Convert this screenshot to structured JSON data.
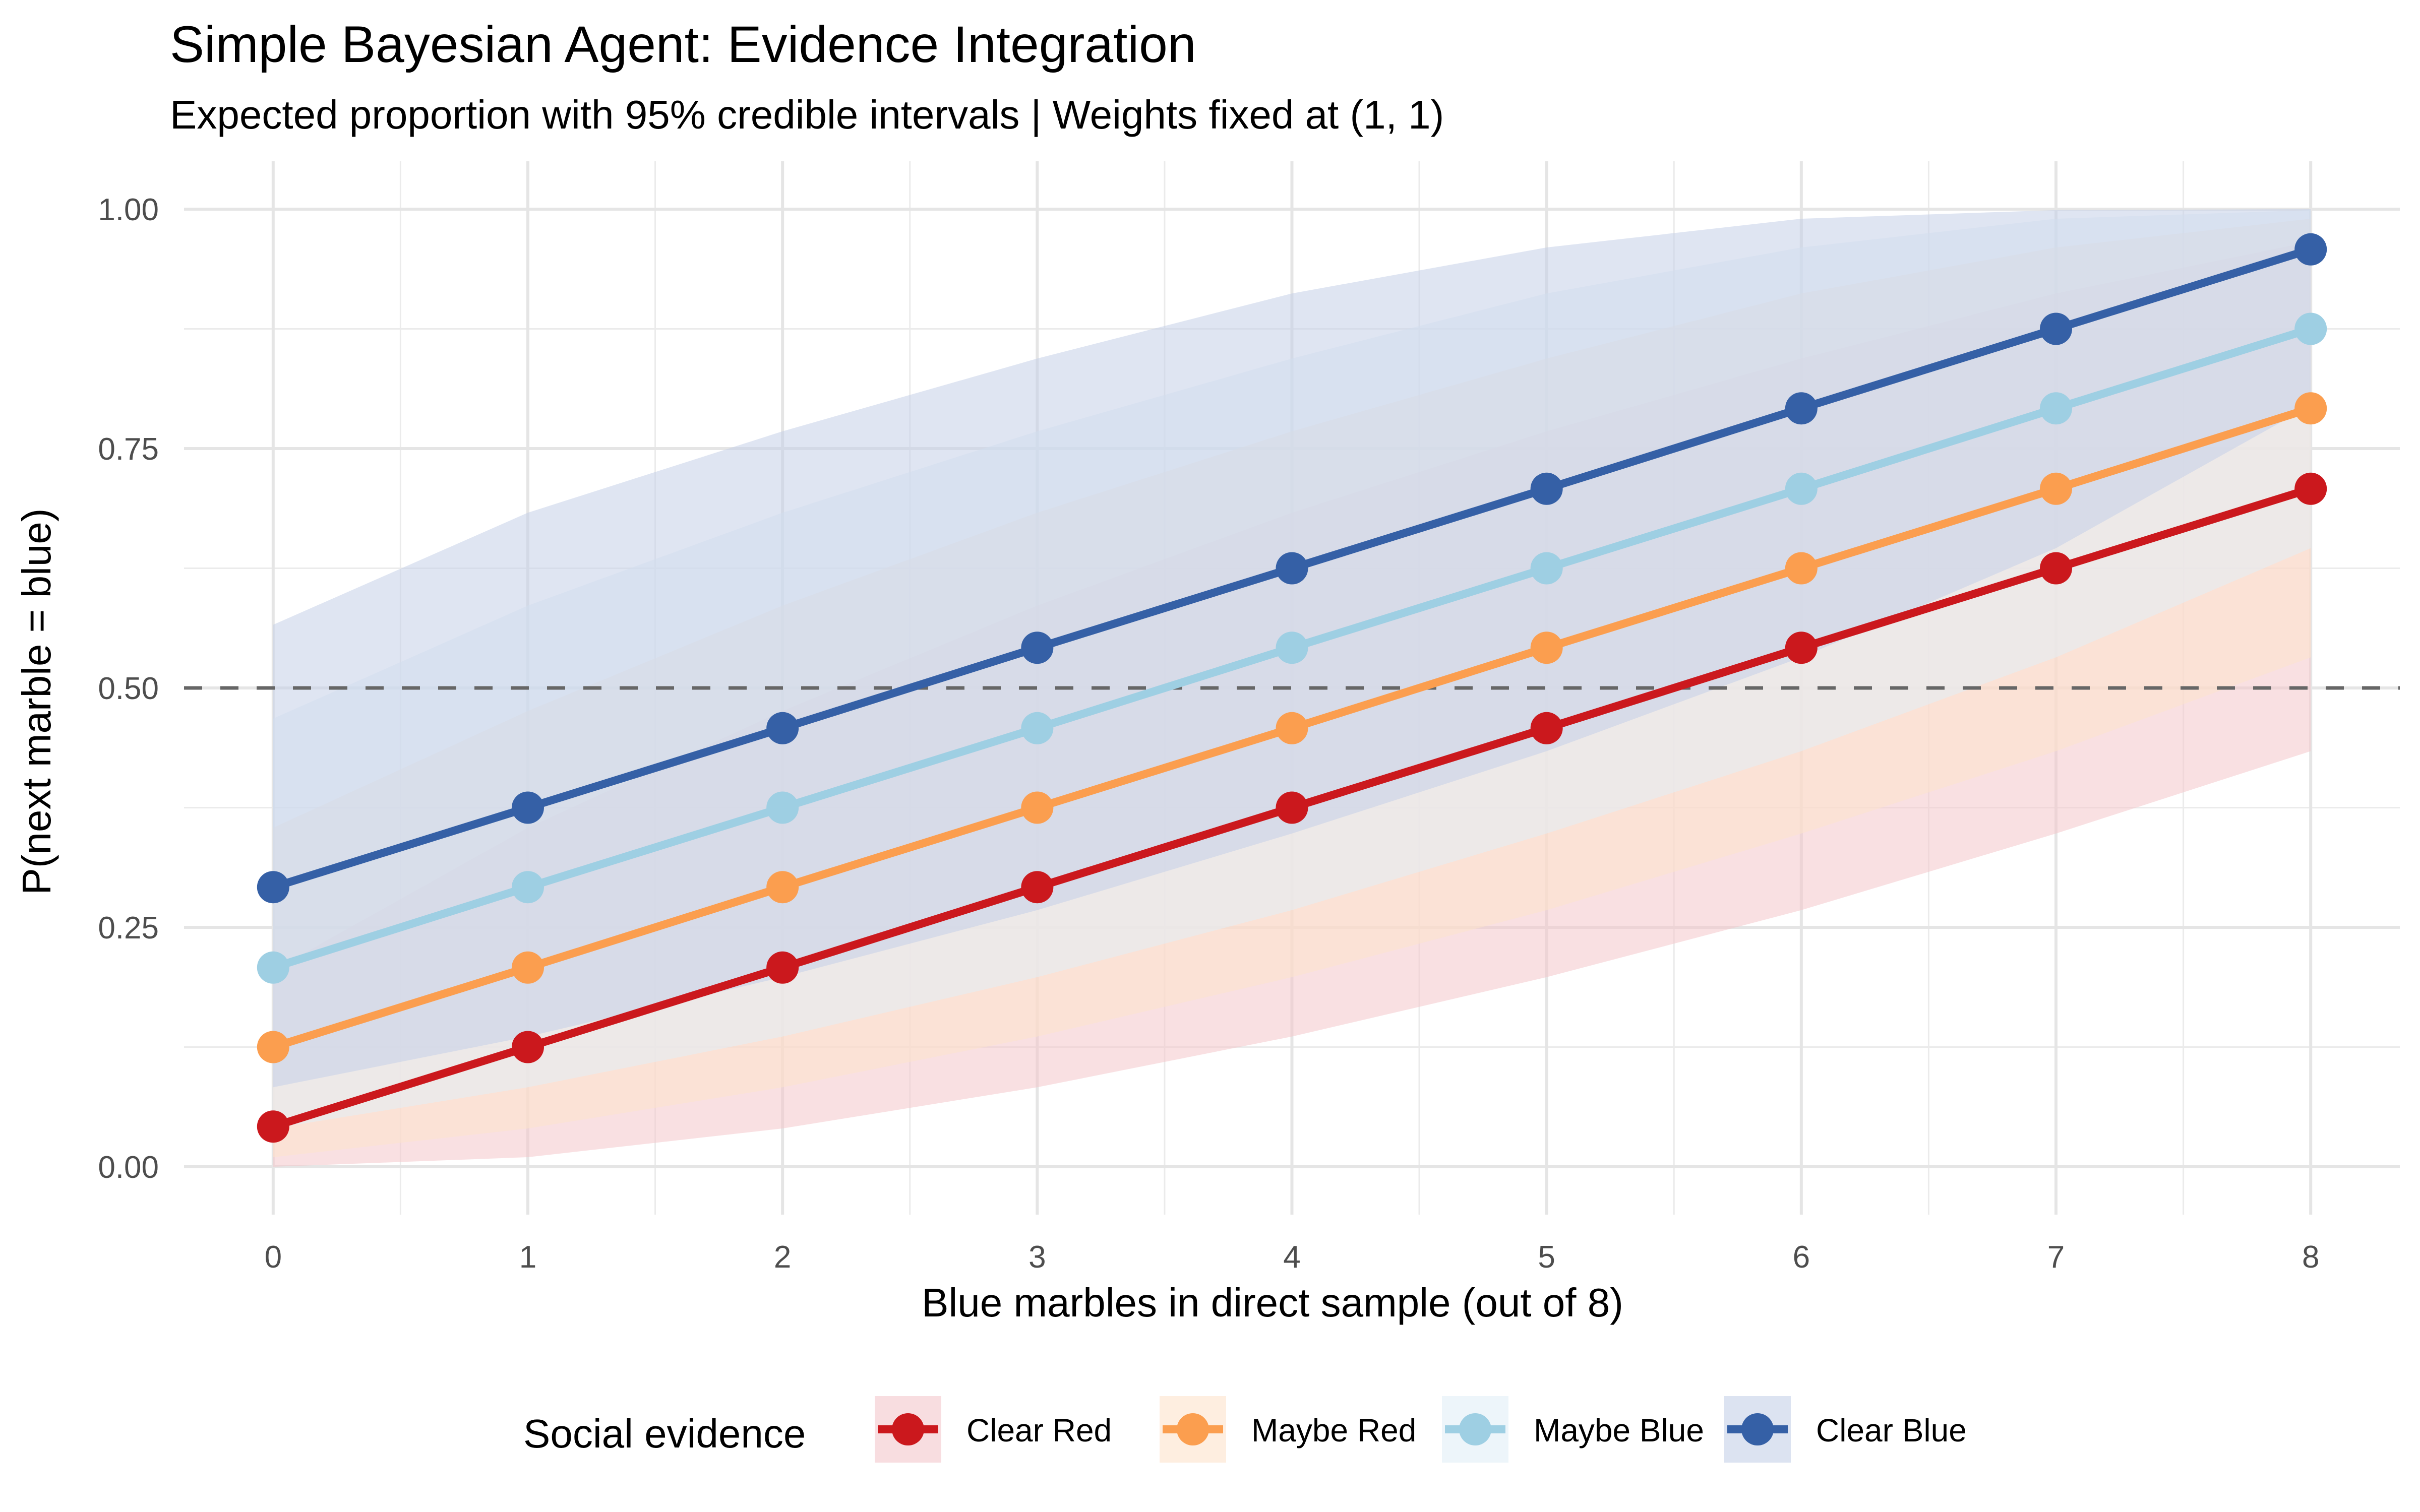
{
  "chart_data": {
    "type": "line",
    "title": "Simple Bayesian Agent: Evidence Integration",
    "subtitle": "Expected proportion with 95% credible intervals | Weights fixed at (1, 1)",
    "xlabel": "Blue marbles in direct sample (out of 8)",
    "ylabel": "P(next marble = blue)",
    "x": [
      0,
      1,
      2,
      3,
      4,
      5,
      6,
      7,
      8
    ],
    "xlim": [
      -0.35,
      8.35
    ],
    "ylim": [
      -0.05,
      1.05
    ],
    "x_ticks": [
      "0",
      "1",
      "2",
      "3",
      "4",
      "5",
      "6",
      "7",
      "8"
    ],
    "y_ticks": [
      {
        "value": 0,
        "label": "0.00"
      },
      {
        "value": 0.25,
        "label": "0.25"
      },
      {
        "value": 0.5,
        "label": "0.50"
      },
      {
        "value": 0.75,
        "label": "0.75"
      },
      {
        "value": 1,
        "label": "1.00"
      }
    ],
    "reference_line": {
      "y": 0.5,
      "style": "dashed",
      "color": "#666666"
    },
    "grid": true,
    "legend": {
      "title": "Social evidence",
      "position": "bottom"
    },
    "series": [
      {
        "name": "Clear Red",
        "color": "#CB181D",
        "ribbon_color": "#F4C6CB",
        "values": [
          0.042,
          0.125,
          0.208,
          0.292,
          0.375,
          0.458,
          0.542,
          0.625,
          0.708
        ],
        "lower": [
          0.0,
          0.01,
          0.04,
          0.083,
          0.136,
          0.198,
          0.268,
          0.348,
          0.434
        ],
        "upper": [
          0.205,
          0.354,
          0.476,
          0.586,
          0.683,
          0.768,
          0.844,
          0.912,
          0.966
        ]
      },
      {
        "name": "Maybe Red",
        "color": "#FB9E4F",
        "ribbon_color": "#FDE3CC",
        "values": [
          0.125,
          0.208,
          0.292,
          0.375,
          0.458,
          0.542,
          0.625,
          0.708,
          0.792
        ],
        "lower": [
          0.01,
          0.04,
          0.083,
          0.136,
          0.198,
          0.268,
          0.348,
          0.434,
          0.532
        ],
        "upper": [
          0.354,
          0.476,
          0.586,
          0.683,
          0.768,
          0.844,
          0.912,
          0.96,
          0.99
        ]
      },
      {
        "name": "Maybe Blue",
        "color": "#9ECFE3",
        "ribbon_color": "#E1EFF7",
        "values": [
          0.208,
          0.292,
          0.375,
          0.458,
          0.542,
          0.625,
          0.708,
          0.792,
          0.875
        ],
        "lower": [
          0.04,
          0.083,
          0.136,
          0.198,
          0.268,
          0.348,
          0.434,
          0.532,
          0.646
        ],
        "upper": [
          0.468,
          0.586,
          0.683,
          0.768,
          0.844,
          0.912,
          0.96,
          0.99,
          0.999
        ]
      },
      {
        "name": "Clear Blue",
        "color": "#3560A6",
        "ribbon_color": "#C5D0E8",
        "values": [
          0.292,
          0.375,
          0.458,
          0.542,
          0.625,
          0.708,
          0.792,
          0.875,
          0.958
        ],
        "lower": [
          0.083,
          0.136,
          0.198,
          0.268,
          0.348,
          0.434,
          0.532,
          0.646,
          0.795
        ],
        "upper": [
          0.566,
          0.683,
          0.768,
          0.844,
          0.912,
          0.96,
          0.99,
          0.999,
          1.0
        ]
      }
    ]
  }
}
